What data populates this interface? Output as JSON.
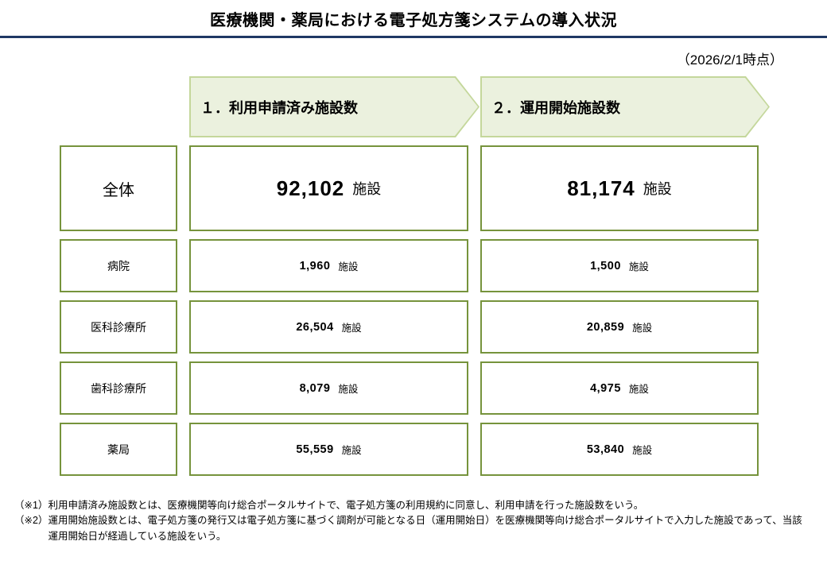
{
  "header": {
    "title": "医療機関・薬局における電子処方箋システムの導入状況",
    "date_note": "（2026/2/1時点）"
  },
  "columns": [
    {
      "id": "applied",
      "label": "１．利用申請済み施設数"
    },
    {
      "id": "started",
      "label": "２．運用開始施設数"
    }
  ],
  "unit": "施設",
  "rows": [
    {
      "label": "全体",
      "applied": "92,102",
      "started": "81,174"
    },
    {
      "label": "病院",
      "applied": "1,960",
      "started": "1,500"
    },
    {
      "label": "医科診療所",
      "applied": "26,504",
      "started": "20,859"
    },
    {
      "label": "歯科診療所",
      "applied": "8,079",
      "started": "4,975"
    },
    {
      "label": "薬局",
      "applied": "55,559",
      "started": "53,840"
    }
  ],
  "footnotes": [
    {
      "marker": "（※1）",
      "text": "利用申請済み施設数とは、医療機関等向け総合ポータルサイトで、電子処方箋の利用規約に同意し、利用申請を行った施設数をいう。"
    },
    {
      "marker": "（※2）",
      "text": "運用開始施設数とは、電子処方箋の発行又は電子処方箋に基づく調剤が可能となる日（運用開始日）を医療機関等向け総合ポータルサイトで入力した施設であって、当該運用開始日が経過している施設をいう。"
    }
  ],
  "colors": {
    "accent_navy": "#1F3864",
    "box_border_green": "#76933C",
    "arrow_border_green": "#C4D79B",
    "arrow_fill_green": "#EBF1DE"
  },
  "chart_data": {
    "type": "table",
    "title": "医療機関・薬局における電子処方箋システムの導入状況",
    "as_of": "2026/2/1",
    "columns": [
      "利用申請済み施設数",
      "運用開始施設数"
    ],
    "categories": [
      "全体",
      "病院",
      "医科診療所",
      "歯科診療所",
      "薬局"
    ],
    "series": [
      {
        "name": "利用申請済み施設数",
        "values": [
          92102,
          1960,
          26504,
          8079,
          55559
        ]
      },
      {
        "name": "運用開始施設数",
        "values": [
          81174,
          1500,
          20859,
          4975,
          53840
        ]
      }
    ],
    "unit": "施設"
  }
}
